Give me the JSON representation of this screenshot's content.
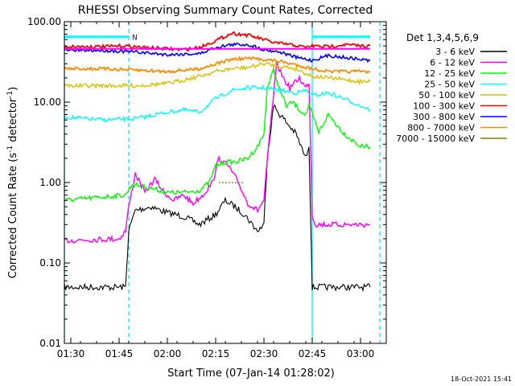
{
  "chart_data": {
    "type": "line",
    "title": "RHESSI Observing Summary Count Rates, Corrected",
    "xlabel": "Start Time (07-Jan-14 01:28:02)",
    "ylabel": "Corrected Count Rate (s⁻¹ detector⁻¹)",
    "ylabel_main": "Corrected Count Rate (s",
    "ylabel_sup1": "-1",
    "ylabel_mid": " detector",
    "ylabel_sup2": "-1",
    "ylabel_end": ")",
    "y_scale": "log",
    "ylim": [
      0.01,
      100
    ],
    "xlim": [
      "01:28",
      "03:08"
    ],
    "y_tick_labels": [
      "100.00",
      "10.00",
      "1.00",
      "0.10",
      "0.01"
    ],
    "x_tick_labels": [
      "01:30",
      "01:45",
      "02:00",
      "02:15",
      "02:30",
      "02:45",
      "03:00"
    ],
    "legend_title": "Det 1,3,4,5,6,9",
    "legend_placement": "right",
    "timestamp": "18-Oct-2021 15:41",
    "flag_label": "N",
    "cyan_marker_times": [
      "01:28",
      "01:48",
      "02:45",
      "03:06"
    ],
    "series": [
      {
        "name": "3 - 6 keV",
        "color": "#000000",
        "x": [
          "01:28",
          "01:47",
          "01:48",
          "01:50",
          "01:55",
          "02:00",
          "02:05",
          "02:10",
          "02:15",
          "02:18",
          "02:21",
          "02:24",
          "02:28",
          "02:30",
          "02:31",
          "02:33",
          "02:35",
          "02:38",
          "02:40",
          "02:43",
          "02:44",
          "02:45",
          "02:46",
          "02:50",
          "02:55",
          "03:00",
          "03:03"
        ],
        "y": [
          0.05,
          0.05,
          0.25,
          0.45,
          0.5,
          0.42,
          0.38,
          0.3,
          0.4,
          0.6,
          0.5,
          0.4,
          0.25,
          0.3,
          2.0,
          9.0,
          7.0,
          5.0,
          4.0,
          2.0,
          3.0,
          0.05,
          0.05,
          0.05,
          0.05,
          0.05,
          0.05
        ]
      },
      {
        "name": "6 - 12 keV",
        "color": "#ff00ff",
        "x": [
          "01:28",
          "01:45",
          "01:47",
          "01:48",
          "01:50",
          "01:53",
          "01:56",
          "01:59",
          "02:02",
          "02:05",
          "02:08",
          "02:11",
          "02:14",
          "02:16",
          "02:19",
          "02:22",
          "02:25",
          "02:28",
          "02:30",
          "02:32",
          "02:34",
          "02:36",
          "02:38",
          "02:41",
          "02:43",
          "02:44",
          "02:45",
          "02:46",
          "03:00",
          "03:03"
        ],
        "y": [
          0.19,
          0.2,
          0.25,
          0.5,
          1.3,
          0.75,
          1.1,
          0.75,
          0.6,
          0.7,
          0.55,
          0.7,
          1.0,
          2.0,
          1.6,
          1.0,
          0.55,
          0.45,
          0.6,
          5.0,
          30,
          20,
          15,
          20,
          15,
          18,
          0.4,
          0.3,
          0.3,
          0.3
        ]
      },
      {
        "name": "12 - 25 keV",
        "color": "#00ff00",
        "x": [
          "01:28",
          "01:47",
          "01:49",
          "01:55",
          "02:00",
          "02:05",
          "02:10",
          "02:13",
          "02:15",
          "02:18",
          "02:21",
          "02:25",
          "02:28",
          "02:30",
          "02:31",
          "02:33",
          "02:35",
          "02:37",
          "02:39",
          "02:41",
          "02:43",
          "02:44",
          "02:45",
          "02:47",
          "02:50",
          "02:55",
          "03:00",
          "03:03"
        ],
        "y": [
          0.6,
          0.7,
          0.95,
          0.85,
          0.75,
          0.75,
          0.8,
          1.0,
          1.6,
          1.8,
          1.8,
          2.0,
          2.8,
          4.0,
          15,
          25,
          14,
          9,
          10,
          8,
          7,
          9,
          7,
          4.2,
          7,
          4.0,
          2.8,
          2.8
        ]
      },
      {
        "name": "25 - 50 keV",
        "color": "#00ffff",
        "x": [
          "01:28",
          "01:40",
          "01:50",
          "02:00",
          "02:05",
          "02:10",
          "02:15",
          "02:20",
          "02:25",
          "02:30",
          "02:35",
          "02:40",
          "02:43",
          "02:45",
          "02:50",
          "02:55",
          "03:00",
          "03:03"
        ],
        "y": [
          6.5,
          6.0,
          6.2,
          7.5,
          8.0,
          7.5,
          11,
          14,
          15,
          15,
          14,
          13,
          14,
          12,
          13,
          11,
          9,
          8
        ]
      },
      {
        "name": "50 - 100 keV",
        "color": "#d8c000",
        "x": [
          "01:28",
          "01:40",
          "01:50",
          "02:00",
          "02:10",
          "02:15",
          "02:20",
          "02:25",
          "02:30",
          "02:35",
          "02:40",
          "02:45",
          "02:50",
          "02:55",
          "03:00",
          "03:03"
        ],
        "y": [
          16,
          16,
          16,
          17,
          21,
          24,
          26,
          27,
          30,
          28,
          26,
          21,
          20,
          19,
          18,
          18
        ]
      },
      {
        "name": "100 - 300 keV",
        "color": "#ff0000",
        "x": [
          "01:28",
          "01:40",
          "01:47",
          "01:52",
          "02:00",
          "02:05",
          "02:10",
          "02:15",
          "02:20",
          "02:25",
          "02:30",
          "02:33",
          "02:38",
          "02:43",
          "02:45",
          "02:50",
          "02:55",
          "03:00",
          "03:03"
        ],
        "y": [
          49,
          49,
          50,
          48,
          46,
          45,
          48,
          58,
          72,
          68,
          60,
          55,
          52,
          48,
          50,
          49,
          52,
          50,
          50
        ]
      },
      {
        "name": "300 - 800 keV",
        "color": "#0000ff",
        "x": [
          "01:28",
          "01:40",
          "01:50",
          "02:00",
          "02:10",
          "02:15",
          "02:20",
          "02:25",
          "02:30",
          "02:35",
          "02:40",
          "02:45",
          "02:50",
          "02:55",
          "03:00",
          "03:03"
        ],
        "y": [
          44,
          44,
          42,
          39,
          40,
          48,
          52,
          52,
          45,
          42,
          36,
          33,
          38,
          36,
          34,
          33
        ]
      },
      {
        "name": "800 - 7000 keV",
        "color": "#ff8c00",
        "x": [
          "01:28",
          "01:40",
          "01:50",
          "02:00",
          "02:10",
          "02:15",
          "02:20",
          "02:25",
          "02:30",
          "02:35",
          "02:40",
          "02:45",
          "02:50",
          "02:55",
          "03:00",
          "03:03"
        ],
        "y": [
          26,
          26,
          25,
          24,
          26,
          30,
          34,
          35,
          34,
          32,
          29,
          26,
          24,
          24,
          24,
          24
        ]
      },
      {
        "name": "7000 - 15000 keV",
        "color": "#808000",
        "x": [
          "02:16",
          "02:24"
        ],
        "y": [
          1.0,
          1.0
        ]
      }
    ],
    "attenuator_state": {
      "color": "#ff00ff",
      "x": [
        "01:28",
        "03:03"
      ],
      "y": [
        46,
        46
      ]
    },
    "decimation_state": {
      "color": "#00ffff",
      "x": [
        "01:28",
        "01:48",
        "02:45",
        "03:03"
      ],
      "y": [
        65,
        65,
        65,
        65
      ]
    }
  }
}
